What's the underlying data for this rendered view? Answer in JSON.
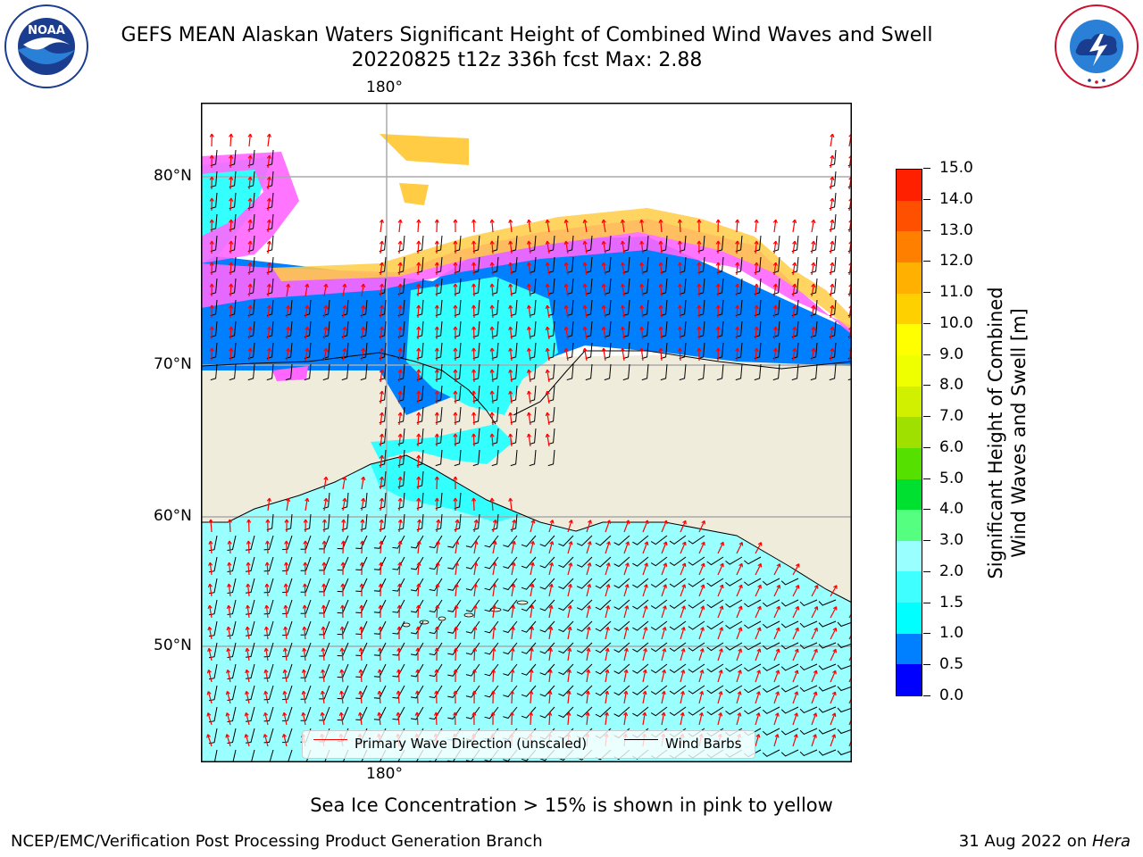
{
  "header": {
    "title_line1": "GEFS MEAN Alaskan Waters Significant Height of Combined Wind Waves and Swell",
    "title_line2": "20220825 t12z 336h fcst   Max: 2.88"
  },
  "logos": {
    "left": {
      "text": "NOAA",
      "ring_text": "NATIONAL OCEANIC AND ATMOSPHERIC ADMINISTRATION",
      "ring_text_bottom": "U.S. DEPARTMENT OF COMMERCE"
    },
    "right": {
      "ring_text": "NATIONAL WEATHER SERVICE"
    }
  },
  "map": {
    "lat_labels": [
      "80°N",
      "70°N",
      "60°N",
      "50°N"
    ],
    "lon_label_top": "180°",
    "lon_label_bottom": "180°",
    "colors": {
      "land": "#efecdc",
      "ocean_low": "#99ffff",
      "ocean_mid": "#33ffff",
      "ocean_blue": "#0080ff",
      "ice_pink": "#ff66ff",
      "ice_yellow": "#ffcc44",
      "wave_arrow": "#ff0000",
      "wind_barb": "#000000",
      "grid": "#aaaaaa"
    }
  },
  "colorbar": {
    "label_line1": "Significant Height of Combined",
    "label_line2": "Wind Waves and Swell [m]",
    "ticks": [
      "0.0",
      "0.5",
      "1.0",
      "1.5",
      "2.0",
      "3.0",
      "4.0",
      "5.0",
      "6.0",
      "7.0",
      "8.0",
      "9.0",
      "10.0",
      "11.0",
      "12.0",
      "13.0",
      "14.0",
      "15.0"
    ],
    "colors": [
      "#0000ff",
      "#0080ff",
      "#00ffff",
      "#40ffff",
      "#99ffff",
      "#55ff80",
      "#00e030",
      "#55e000",
      "#a0e000",
      "#d0f000",
      "#f0ff00",
      "#ffff00",
      "#ffd000",
      "#ffb000",
      "#ff8000",
      "#ff5000",
      "#ff2000"
    ]
  },
  "legend": {
    "wave_label": "Primary Wave Direction (unscaled)",
    "barb_label": "Wind Barbs",
    "wave_color": "#ff0000",
    "barb_color": "#000000"
  },
  "note": "Sea Ice Concentration > 15% is shown in pink to yellow",
  "footer": {
    "left": "NCEP/EMC/Verification Post Processing Product Generation Branch",
    "right_date": "31 Aug 2022 on ",
    "right_machine": "Hera"
  }
}
